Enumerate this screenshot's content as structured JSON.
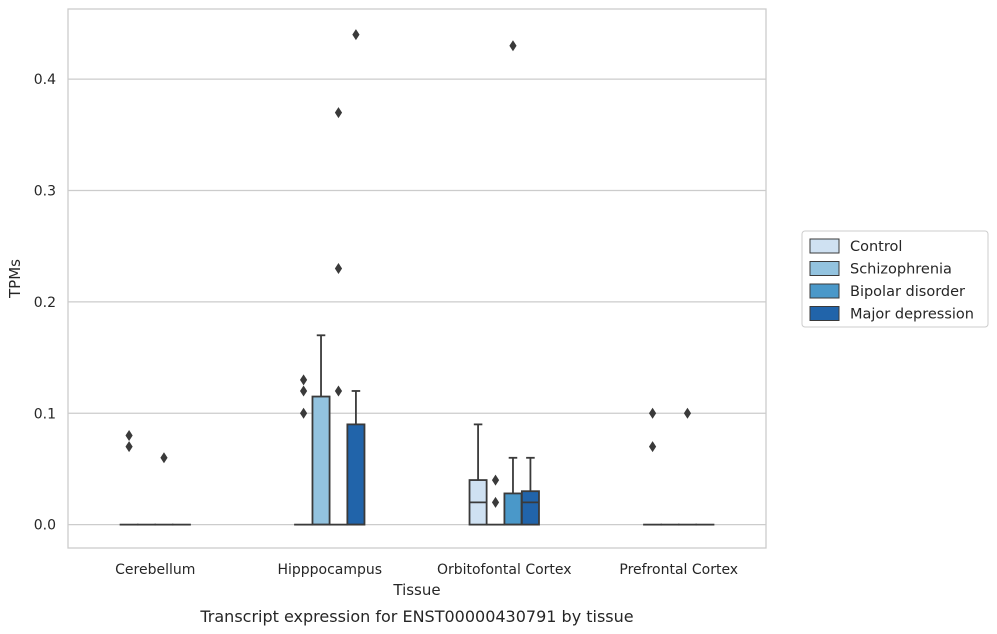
{
  "chart_data": {
    "type": "box",
    "caption": "Transcript expression for ENST00000430791 by tissue",
    "xlabel": "Tissue",
    "ylabel": "TPMs",
    "ylim": [
      -0.021,
      0.463
    ],
    "yticks": [
      0.0,
      0.1,
      0.2,
      0.3,
      0.4
    ],
    "ytick_labels": [
      "0.0",
      "0.1",
      "0.2",
      "0.3",
      "0.4"
    ],
    "grid": "horizontal",
    "legend_position": "right",
    "categories": [
      "Cerebellum",
      "Hipppocampus",
      "Orbitofontal Cortex",
      "Prefrontal Cortex"
    ],
    "series": [
      {
        "name": "Control",
        "color": "#cfe1f2",
        "boxes": [
          {
            "q1": 0,
            "median": 0,
            "q3": 0,
            "whisker_low": 0,
            "whisker_high": 0,
            "outliers": [
              0.07,
              0.08
            ]
          },
          {
            "q1": 0,
            "median": 0,
            "q3": 0,
            "whisker_low": 0,
            "whisker_high": 0,
            "outliers": [
              0.1,
              0.12,
              0.13
            ]
          },
          {
            "q1": 0,
            "median": 0.02,
            "q3": 0.04,
            "whisker_low": 0,
            "whisker_high": 0.09,
            "outliers": []
          },
          {
            "q1": 0,
            "median": 0,
            "q3": 0,
            "whisker_low": 0,
            "whisker_high": 0,
            "outliers": [
              0.07,
              0.1
            ]
          }
        ]
      },
      {
        "name": "Schizophrenia",
        "color": "#93c3df",
        "boxes": [
          {
            "q1": 0,
            "median": 0,
            "q3": 0,
            "whisker_low": 0,
            "whisker_high": 0,
            "outliers": []
          },
          {
            "q1": 0,
            "median": 0,
            "q3": 0.115,
            "whisker_low": 0,
            "whisker_high": 0.17,
            "outliers": []
          },
          {
            "q1": 0,
            "median": 0,
            "q3": 0,
            "whisker_low": 0,
            "whisker_high": 0,
            "outliers": [
              0.02,
              0.04
            ]
          },
          {
            "q1": 0,
            "median": 0,
            "q3": 0,
            "whisker_low": 0,
            "whisker_high": 0,
            "outliers": []
          }
        ]
      },
      {
        "name": "Bipolar disorder",
        "color": "#4a98c9",
        "boxes": [
          {
            "q1": 0,
            "median": 0,
            "q3": 0,
            "whisker_low": 0,
            "whisker_high": 0,
            "outliers": [
              0.06
            ]
          },
          {
            "q1": 0,
            "median": 0,
            "q3": 0,
            "whisker_low": 0,
            "whisker_high": 0,
            "outliers": [
              0.12,
              0.23,
              0.37
            ]
          },
          {
            "q1": 0,
            "median": 0,
            "q3": 0.028,
            "whisker_low": 0,
            "whisker_high": 0.06,
            "outliers": [
              0.43
            ]
          },
          {
            "q1": 0,
            "median": 0,
            "q3": 0,
            "whisker_low": 0,
            "whisker_high": 0,
            "outliers": [
              0.1
            ]
          }
        ]
      },
      {
        "name": "Major depression",
        "color": "#2164aa",
        "boxes": [
          {
            "q1": 0,
            "median": 0,
            "q3": 0,
            "whisker_low": 0,
            "whisker_high": 0,
            "outliers": []
          },
          {
            "q1": 0,
            "median": 0,
            "q3": 0.09,
            "whisker_low": 0,
            "whisker_high": 0.12,
            "outliers": [
              0.44
            ]
          },
          {
            "q1": 0,
            "median": 0.02,
            "q3": 0.03,
            "whisker_low": 0,
            "whisker_high": 0.06,
            "outliers": []
          },
          {
            "q1": 0,
            "median": 0,
            "q3": 0,
            "whisker_low": 0,
            "whisker_high": 0,
            "outliers": []
          }
        ]
      }
    ]
  }
}
